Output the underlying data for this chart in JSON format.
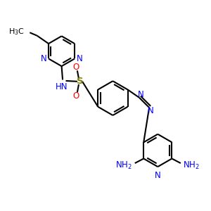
{
  "bg_color": "#ffffff",
  "bond_color": "#000000",
  "n_color": "#0000ff",
  "o_color": "#ff0000",
  "s_color": "#808000",
  "lw": 1.5,
  "fs": 8.5,
  "fig_size": [
    3.0,
    3.0
  ],
  "dpi": 100,
  "xlim": [
    0,
    10
  ],
  "ylim": [
    0,
    10
  ]
}
